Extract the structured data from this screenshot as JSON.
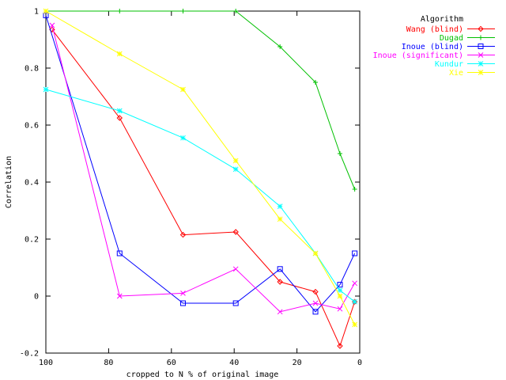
{
  "chart_data": {
    "type": "line",
    "title": "",
    "xlabel": "cropped to N % of original image",
    "ylabel": "Correlation",
    "xlim": [
      100,
      0
    ],
    "ylim": [
      -0.2,
      1
    ],
    "x_reversed": true,
    "xticks": [
      100,
      80,
      60,
      40,
      20,
      0
    ],
    "xtick_labels": [
      "100",
      "80",
      "60",
      "40",
      "20",
      "0"
    ],
    "yticks": [
      -0.2,
      0,
      0.2,
      0.4,
      0.6,
      0.8,
      1
    ],
    "ytick_labels": [
      "-0.2",
      "0",
      "0.2",
      "0.4",
      "0.6",
      "0.8",
      "1"
    ],
    "grid": false,
    "legend_title": "Algorithm",
    "legend_position": "outside top-right",
    "series": [
      {
        "name": "Wang (blind)",
        "color": "#ff0000",
        "marker": "diamond",
        "x": [
          98,
          76.5,
          56.3,
          39.5,
          25.4,
          14.1,
          6.3,
          1.6
        ],
        "y": [
          0.935,
          0.625,
          0.215,
          0.225,
          0.05,
          0.015,
          -0.175,
          -0.02
        ]
      },
      {
        "name": "Dugad",
        "color": "#00c000",
        "marker": "plus",
        "x": [
          100,
          76.5,
          56.3,
          39.5,
          25.4,
          14.1,
          6.3,
          1.6
        ],
        "y": [
          1.0,
          1.0,
          1.0,
          1.0,
          0.875,
          0.75,
          0.5,
          0.375
        ]
      },
      {
        "name": "Inoue (blind)",
        "color": "#0000ff",
        "marker": "square",
        "x": [
          100,
          76.5,
          56.3,
          39.5,
          25.4,
          14.1,
          6.3,
          1.6
        ],
        "y": [
          0.985,
          0.15,
          -0.025,
          -0.025,
          0.095,
          -0.055,
          0.04,
          0.15
        ]
      },
      {
        "name": "Inoue (significant)",
        "color": "#ff00ff",
        "marker": "x",
        "x": [
          98,
          76.5,
          56.3,
          39.5,
          25.4,
          14.1,
          6.3,
          1.6
        ],
        "y": [
          0.95,
          0.0,
          0.01,
          0.095,
          -0.055,
          -0.025,
          -0.045,
          0.045
        ]
      },
      {
        "name": "Kundur",
        "color": "#00ffff",
        "marker": "star",
        "x": [
          100,
          76.5,
          56.3,
          39.5,
          25.4,
          14.1,
          6.3,
          1.6
        ],
        "y": [
          0.725,
          0.65,
          0.555,
          0.445,
          0.315,
          0.15,
          0.02,
          -0.02
        ]
      },
      {
        "name": "Xie",
        "color": "#ffff00",
        "marker": "star",
        "x": [
          100,
          76.5,
          56.3,
          39.5,
          25.4,
          14.1,
          6.3,
          1.6
        ],
        "y": [
          1.0,
          0.85,
          0.725,
          0.475,
          0.27,
          0.15,
          0.0,
          -0.1
        ]
      }
    ]
  }
}
